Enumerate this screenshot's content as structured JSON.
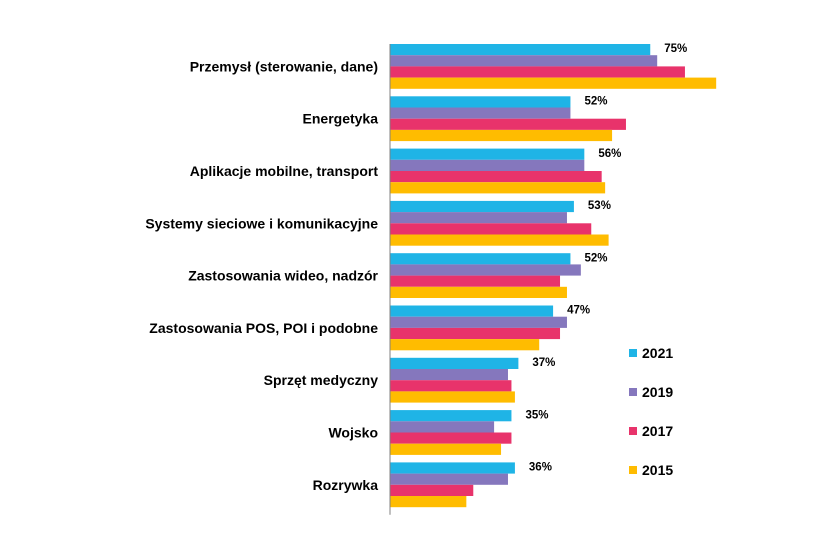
{
  "chart_data": {
    "type": "bar",
    "orientation": "horizontal",
    "categories": [
      "Przemysł (sterowanie, dane)",
      "Energetyka",
      "Aplikacje mobilne, transport",
      "Systemy sieciowe i komunikacyjne",
      "Zastosowania wideo, nadzór",
      "Zastosowania POS, POI i podobne",
      "Sprzęt medyczny",
      "Wojsko",
      "Rozrywka"
    ],
    "series": [
      {
        "name": "2021",
        "color": "#1fb4e6",
        "values": [
          75,
          52,
          56,
          53,
          52,
          47,
          37,
          35,
          36
        ]
      },
      {
        "name": "2019",
        "color": "#8577bd",
        "values": [
          77,
          52,
          56,
          51,
          55,
          51,
          34,
          30,
          34
        ]
      },
      {
        "name": "2017",
        "color": "#e8336b",
        "values": [
          85,
          68,
          61,
          58,
          49,
          49,
          35,
          35,
          24
        ]
      },
      {
        "name": "2015",
        "color": "#ffbc00",
        "values": [
          94,
          64,
          62,
          63,
          51,
          43,
          36,
          32,
          22
        ]
      }
    ],
    "data_labels_series": "2021",
    "data_labels": [
      "75%",
      "52%",
      "56%",
      "53%",
      "52%",
      "47%",
      "37%",
      "35%",
      "36%"
    ],
    "xlim": [
      0,
      100
    ],
    "grid": false,
    "legend_position": "right",
    "legend_order": [
      "2021",
      "2019",
      "2017",
      "2015"
    ]
  }
}
